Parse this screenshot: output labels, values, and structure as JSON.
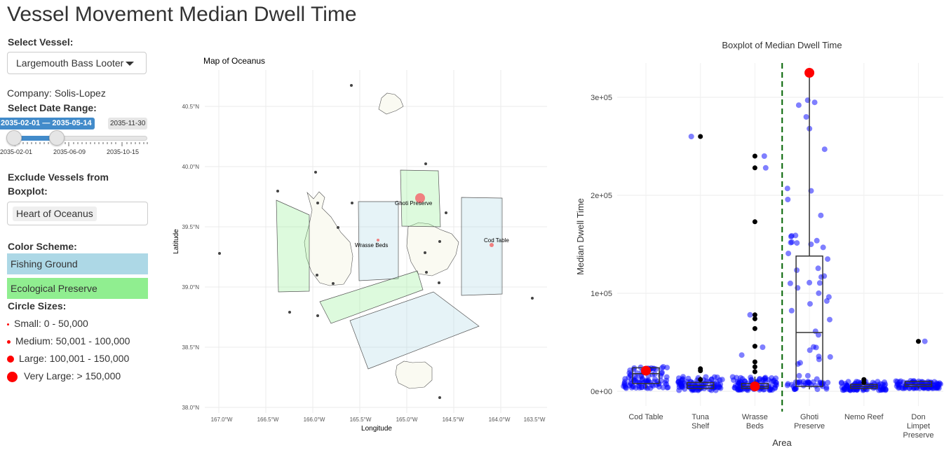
{
  "app": {
    "title": "Vessel Movement Median Dwell Time"
  },
  "sidebar": {
    "vessel_label": "Select Vessel:",
    "vessel_value": "Largemouth Bass Looter",
    "company_text": "Company: Solis-Lopez",
    "date_label": "Select Date Range:",
    "date_range_value": "2035-02-01 — 2035-05-14",
    "date_max": "2035-11-30",
    "date_ticks": [
      "2035-02-01",
      "2035-06-09",
      "2035-10-15"
    ],
    "exclude_label_line1": "Exclude Vessels from",
    "exclude_label_line2": "Boxplot:",
    "exclude_selected": [
      "Heart of Oceanus"
    ],
    "color_label": "Color Scheme:",
    "color_items": [
      {
        "label": "Fishing Ground",
        "color": "#add8e6"
      },
      {
        "label": "Ecological Preserve",
        "color": "#90ee90"
      }
    ],
    "sizes_label": "Circle Sizes:",
    "sizes": [
      {
        "label": "Small: 0 - 50,000"
      },
      {
        "label": "Medium: 50,001 - 100,000"
      },
      {
        "label": "Large: 100,001 - 150,000"
      },
      {
        "label": "Very Large: > 150,000"
      }
    ]
  },
  "map": {
    "title": "Map of Oceanus",
    "xlabel": "Longitude",
    "ylabel": "Latitude",
    "x_ticks": [
      "167.0°W",
      "166.5°W",
      "166.0°W",
      "165.5°W",
      "165.0°W",
      "164.5°W",
      "164.0°W",
      "163.5°W"
    ],
    "y_ticks": [
      "40.5°N",
      "40.0°N",
      "39.5°N",
      "39.0°N",
      "38.5°N",
      "38.0°N"
    ],
    "area_labels": {
      "ghoti": "Ghoti Preserve",
      "wrasse": "Wrasse Beds",
      "cod": "Cod Table"
    }
  },
  "chart_data": {
    "type": "box",
    "title": "Boxplot of Median Dwell Time",
    "xlabel": "Area",
    "ylabel": "Median Dwell Time",
    "categories": [
      "Cod Table",
      "Tuna Shelf",
      "Wrasse Beds",
      "Ghoti Preserve",
      "Nemo Reef",
      "Don Limpet Preserve"
    ],
    "y_ticks": [
      "0e+00",
      "1e+05",
      "2e+05",
      "3e+05"
    ],
    "ylim": [
      -15000,
      335000
    ],
    "boxes": [
      {
        "category": "Cod Table",
        "q1": 8000,
        "median": 18000,
        "q3": 24000,
        "min": 3000,
        "max": 26000
      },
      {
        "category": "Tuna Shelf",
        "q1": 3000,
        "median": 6000,
        "q3": 9000,
        "min": 1000,
        "max": 15000
      },
      {
        "category": "Wrasse Beds",
        "q1": 3000,
        "median": 5000,
        "q3": 8000,
        "min": 1000,
        "max": 15000
      },
      {
        "category": "Ghoti Preserve",
        "q1": 5000,
        "median": 60000,
        "q3": 138000,
        "min": 2000,
        "max": 325000
      },
      {
        "category": "Nemo Reef",
        "q1": 3000,
        "median": 5000,
        "q3": 7000,
        "min": 1000,
        "max": 10000
      },
      {
        "category": "Don Limpet Preserve",
        "q1": 5000,
        "median": 7000,
        "q3": 10000,
        "min": 3000,
        "max": 11000
      }
    ],
    "outliers": [
      {
        "category": "Cod Table",
        "values": []
      },
      {
        "category": "Tuna Shelf",
        "values": [
          260000,
          23000,
          21000,
          12000
        ]
      },
      {
        "category": "Wrasse Beds",
        "values": [
          240000,
          228000,
          173000,
          78000,
          74000,
          64000,
          46000,
          30000,
          25000,
          20000
        ]
      },
      {
        "category": "Ghoti Preserve",
        "values": []
      },
      {
        "category": "Nemo Reef",
        "values": [
          12000,
          9000
        ]
      },
      {
        "category": "Don Limpet Preserve",
        "values": [
          51000
        ]
      }
    ],
    "highlight": [
      {
        "category": "Cod Table",
        "value": 21000
      },
      {
        "category": "Wrasse Beds",
        "value": 5000
      },
      {
        "category": "Ghoti Preserve",
        "value": 325000
      }
    ],
    "divider_after": "Wrasse Beds",
    "colors": {
      "points": "#0000ff",
      "highlight": "#ff0000",
      "divider": "#006400"
    }
  }
}
